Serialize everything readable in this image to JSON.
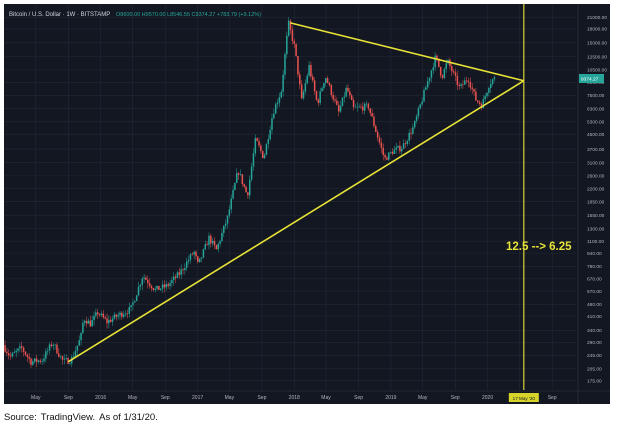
{
  "header": {
    "symbol": "Bitcoin / U.S. Dollar · 1W · BITSTAMP",
    "ohlc": "O8600.00  H9570.00  L8546.55  C9374.27  +783.79 (+9.12%)",
    "price_badge": "9374.27"
  },
  "annotation": "12.5 --> 6.25",
  "crosshair_date_badge": "17 May '20",
  "source": {
    "label": "Source:",
    "name": "TradingView.",
    "as_of": "As of 1/31/20."
  },
  "colors": {
    "background": "#131722",
    "grid": "#232836",
    "up": "#26a69a",
    "down": "#ef5350",
    "trendline": "#e8e337",
    "axis_text": "#b2b5be",
    "badge_green": "#26a69a",
    "badge_yellow": "#d6d32a"
  },
  "chart_data": {
    "type": "candlestick",
    "scale": "log",
    "title": "Bitcoin / U.S. Dollar · 1W · BITSTAMP",
    "x_ticks": [
      "May",
      "Sep",
      "2016",
      "May",
      "Sep",
      "2017",
      "May",
      "Sep",
      "2018",
      "May",
      "Sep",
      "2019",
      "May",
      "Sep",
      "2020",
      "May",
      "Sep"
    ],
    "y_ticks": [
      "25000.00",
      "21000.00",
      "18000.00",
      "15000.00",
      "12500.00",
      "10500.00",
      "8900.00",
      "7500.00",
      "6300.00",
      "5300.00",
      "4500.00",
      "3700.00",
      "3100.00",
      "2600.00",
      "2200.00",
      "1850.00",
      "1550.00",
      "1300.00",
      "1100.00",
      "940.00",
      "790.00",
      "670.00",
      "570.00",
      "480.00",
      "410.00",
      "340.00",
      "290.00",
      "245.00",
      "205.00",
      "175.00",
      "145.00"
    ],
    "ylim": [
      155,
      25000
    ],
    "xlim": [
      "2015-01-01",
      "2020-11-30"
    ],
    "price_path": [
      [
        "2015-01-05",
        280
      ],
      [
        "2015-02-01",
        240
      ],
      [
        "2015-03-15",
        270
      ],
      [
        "2015-04-20",
        225
      ],
      [
        "2015-06-01",
        230
      ],
      [
        "2015-07-10",
        290
      ],
      [
        "2015-08-20",
        225
      ],
      [
        "2015-09-20",
        232
      ],
      [
        "2015-10-25",
        310
      ],
      [
        "2015-11-05",
        400
      ],
      [
        "2015-12-01",
        370
      ],
      [
        "2015-12-28",
        430
      ],
      [
        "2016-02-01",
        380
      ],
      [
        "2016-03-15",
        415
      ],
      [
        "2016-05-01",
        450
      ],
      [
        "2016-06-15",
        700
      ],
      [
        "2016-08-01",
        580
      ],
      [
        "2016-09-15",
        610
      ],
      [
        "2016-11-01",
        720
      ],
      [
        "2016-12-25",
        960
      ],
      [
        "2017-01-10",
        800
      ],
      [
        "2017-02-20",
        1150
      ],
      [
        "2017-03-20",
        980
      ],
      [
        "2017-05-01",
        1500
      ],
      [
        "2017-06-10",
        2800
      ],
      [
        "2017-07-15",
        2000
      ],
      [
        "2017-08-15",
        4200
      ],
      [
        "2017-09-15",
        3300
      ],
      [
        "2017-10-20",
        6000
      ],
      [
        "2017-11-20",
        8000
      ],
      [
        "2017-12-17",
        19500
      ],
      [
        "2018-01-10",
        14000
      ],
      [
        "2018-02-05",
        7000
      ],
      [
        "2018-03-05",
        11000
      ],
      [
        "2018-04-05",
        6700
      ],
      [
        "2018-05-05",
        9700
      ],
      [
        "2018-06-25",
        6000
      ],
      [
        "2018-07-25",
        8300
      ],
      [
        "2018-08-20",
        6300
      ],
      [
        "2018-10-15",
        6500
      ],
      [
        "2018-11-20",
        4300
      ],
      [
        "2018-12-15",
        3250
      ],
      [
        "2019-01-15",
        3600
      ],
      [
        "2019-02-20",
        3800
      ],
      [
        "2019-04-05",
        5000
      ],
      [
        "2019-05-15",
        7900
      ],
      [
        "2019-06-26",
        12500
      ],
      [
        "2019-07-20",
        9600
      ],
      [
        "2019-08-10",
        11800
      ],
      [
        "2019-09-25",
        8200
      ],
      [
        "2019-10-26",
        9500
      ],
      [
        "2019-11-25",
        7100
      ],
      [
        "2019-12-18",
        6600
      ],
      [
        "2020-01-15",
        8800
      ],
      [
        "2020-01-31",
        9374
      ]
    ],
    "trendlines": [
      {
        "name": "upper",
        "from": [
          "2017-12-17",
          19500
        ],
        "to": [
          "2020-05-17",
          9100
        ]
      },
      {
        "name": "lower",
        "from": [
          "2015-09-01",
          225
        ],
        "to": [
          "2020-05-17",
          9100
        ]
      }
    ],
    "vertical_marker": {
      "date": "2020-05-17"
    },
    "grid": true
  }
}
